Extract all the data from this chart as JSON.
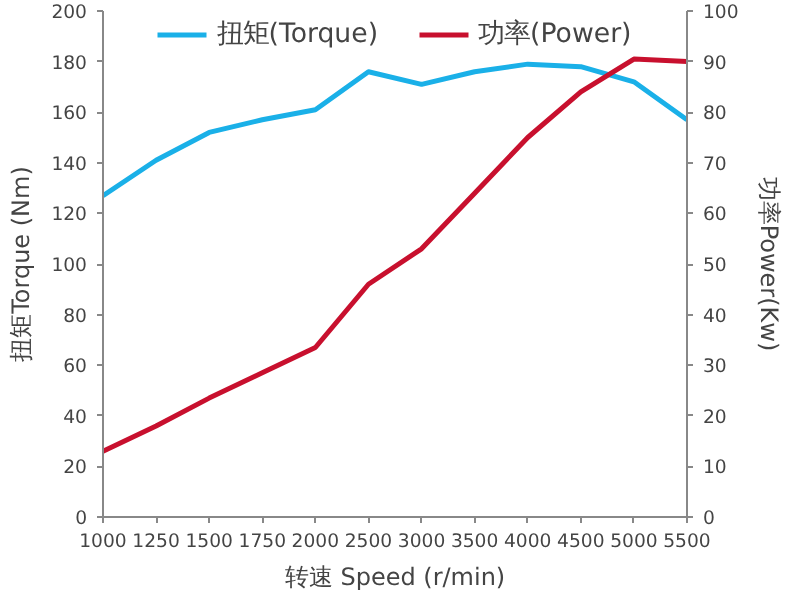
{
  "chart_data": {
    "type": "line",
    "xlabel": "转速 Speed (r/min)",
    "ylabel": "扭矩Torque (Nm)",
    "y2label": "功率Power(Kw)",
    "categories": [
      "1000",
      "1250",
      "1500",
      "1750",
      "2000",
      "2500",
      "3000",
      "3500",
      "4000",
      "4500",
      "5000",
      "5500"
    ],
    "series": [
      {
        "name": "扭矩(Torque)",
        "color": "#1ab0e8",
        "values": [
          127,
          141,
          152,
          157,
          161,
          176,
          171,
          176,
          179,
          178,
          172,
          157
        ]
      },
      {
        "name": "功率(Power)",
        "color": "#c8102e",
        "axis": "y2",
        "values": [
          13,
          18,
          23.5,
          28.5,
          33.5,
          46,
          53,
          64,
          75,
          84,
          90.5,
          90
        ]
      }
    ],
    "ylim": [
      0,
      200
    ],
    "yticks": [
      0,
      20,
      40,
      60,
      80,
      100,
      120,
      140,
      160,
      180,
      200
    ],
    "y2lim": [
      0,
      100
    ],
    "y2ticks": [
      0,
      10,
      20,
      30,
      40,
      50,
      60,
      70,
      80,
      90,
      100
    ],
    "legend": "top",
    "grid": false,
    "marker": "none",
    "line_style": "solid"
  }
}
